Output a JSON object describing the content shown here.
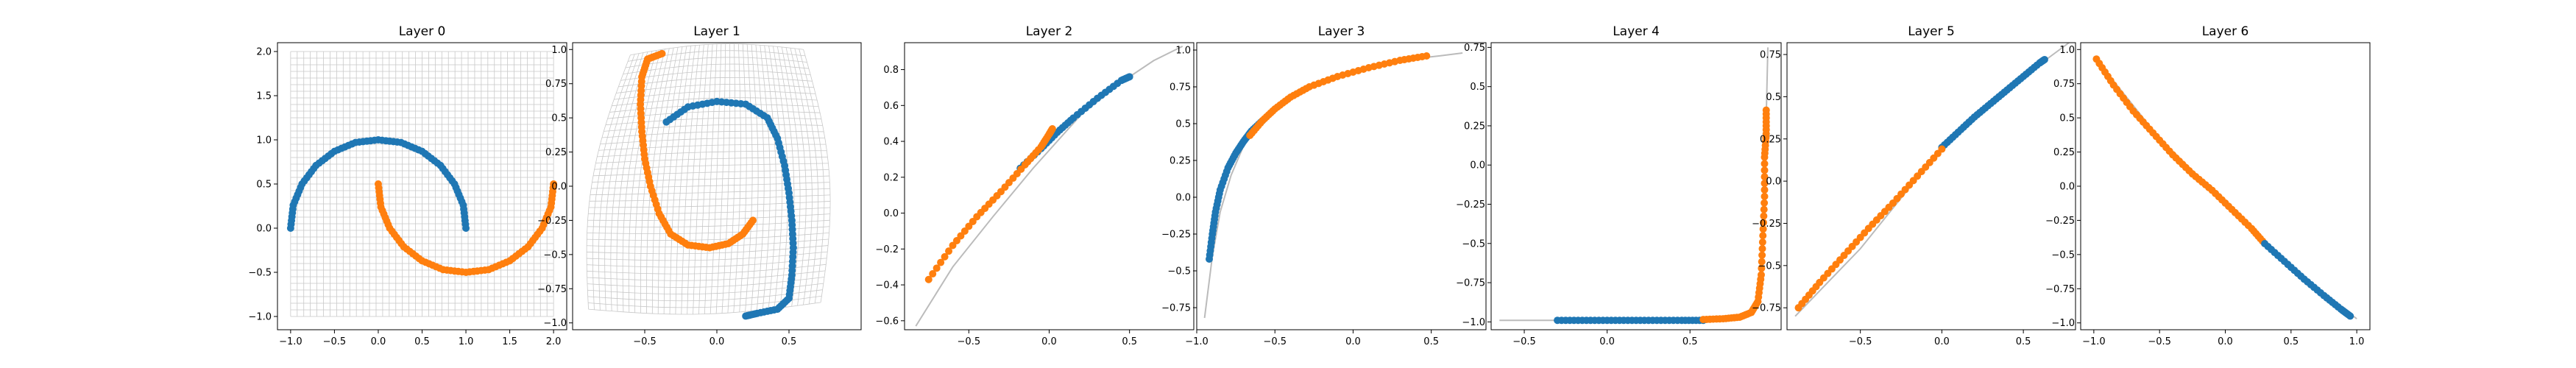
{
  "figure": {
    "colors": {
      "blue": "#1f77b4",
      "orange": "#ff7f0e",
      "grid_lines": "#bbbbbb",
      "axes": "#000000"
    }
  },
  "chart_data": [
    {
      "type": "scatter",
      "title": "Layer 0",
      "xlim": [
        -1.15,
        2.15
      ],
      "ylim": [
        -1.15,
        2.1
      ],
      "xticks": [
        -1.0,
        -0.5,
        0.0,
        0.5,
        1.0,
        1.5,
        2.0
      ],
      "yticks": [
        -1.0,
        -0.5,
        0.0,
        0.5,
        1.0,
        1.5,
        2.0
      ],
      "background_grid": {
        "x_range": [
          -1.0,
          2.0
        ],
        "y_range": [
          -1.0,
          2.0
        ],
        "divisions": 40
      },
      "series": [
        {
          "color": "blue",
          "points": [
            [
              -1.0,
              0.0
            ],
            [
              -0.97,
              0.26
            ],
            [
              -0.87,
              0.5
            ],
            [
              -0.71,
              0.71
            ],
            [
              -0.5,
              0.87
            ],
            [
              -0.26,
              0.97
            ],
            [
              0.0,
              1.0
            ],
            [
              0.26,
              0.97
            ],
            [
              0.5,
              0.87
            ],
            [
              0.71,
              0.71
            ],
            [
              0.87,
              0.5
            ],
            [
              0.97,
              0.26
            ],
            [
              1.0,
              0.0
            ]
          ]
        },
        {
          "color": "orange",
          "points": [
            [
              0.0,
              0.5
            ],
            [
              0.03,
              0.24
            ],
            [
              0.13,
              0.0
            ],
            [
              0.29,
              -0.21
            ],
            [
              0.5,
              -0.37
            ],
            [
              0.74,
              -0.47
            ],
            [
              1.0,
              -0.5
            ],
            [
              1.26,
              -0.47
            ],
            [
              1.5,
              -0.37
            ],
            [
              1.71,
              -0.21
            ],
            [
              1.87,
              0.0
            ],
            [
              1.97,
              0.24
            ],
            [
              2.0,
              0.5
            ]
          ]
        }
      ]
    },
    {
      "type": "scatter",
      "title": "Layer 1",
      "xlim": [
        -1.0,
        1.0
      ],
      "ylim": [
        -1.05,
        1.05
      ],
      "xticks": [
        -0.5,
        0.0,
        0.5
      ],
      "yticks": [
        -1.0,
        -0.75,
        -0.5,
        -0.25,
        0.0,
        0.25,
        0.5,
        0.75,
        1.0
      ],
      "background_grid": {
        "corners": [
          [
            -0.6,
            0.96
          ],
          [
            0.6,
            1.0
          ],
          [
            0.72,
            -0.85
          ],
          [
            -0.89,
            -0.9
          ]
        ],
        "divisions": 40
      },
      "series": [
        {
          "color": "blue",
          "points": [
            [
              -0.35,
              0.47
            ],
            [
              -0.2,
              0.58
            ],
            [
              0.0,
              0.62
            ],
            [
              0.2,
              0.6
            ],
            [
              0.35,
              0.5
            ],
            [
              0.42,
              0.35
            ],
            [
              0.47,
              0.15
            ],
            [
              0.5,
              -0.05
            ],
            [
              0.52,
              -0.25
            ],
            [
              0.53,
              -0.45
            ],
            [
              0.52,
              -0.65
            ],
            [
              0.5,
              -0.82
            ],
            [
              0.42,
              -0.9
            ],
            [
              0.28,
              -0.93
            ],
            [
              0.2,
              -0.95
            ]
          ]
        },
        {
          "color": "orange",
          "points": [
            [
              -0.38,
              0.97
            ],
            [
              -0.48,
              0.93
            ],
            [
              -0.52,
              0.8
            ],
            [
              -0.53,
              0.6
            ],
            [
              -0.52,
              0.4
            ],
            [
              -0.5,
              0.2
            ],
            [
              -0.46,
              0.0
            ],
            [
              -0.4,
              -0.2
            ],
            [
              -0.32,
              -0.35
            ],
            [
              -0.2,
              -0.43
            ],
            [
              -0.05,
              -0.45
            ],
            [
              0.08,
              -0.42
            ],
            [
              0.18,
              -0.35
            ],
            [
              0.25,
              -0.25
            ]
          ]
        }
      ]
    },
    {
      "type": "scatter",
      "title": "Layer 2",
      "xlim": [
        -0.9,
        0.9
      ],
      "ylim": [
        -0.65,
        0.95
      ],
      "xticks": [
        -0.5,
        0.0,
        0.5
      ],
      "yticks": [
        -0.6,
        -0.4,
        -0.2,
        0.0,
        0.2,
        0.4,
        0.6,
        0.8
      ],
      "background_curve": [
        [
          -0.83,
          -0.63
        ],
        [
          -0.6,
          -0.3
        ],
        [
          -0.35,
          -0.02
        ],
        [
          -0.1,
          0.25
        ],
        [
          0.0,
          0.35
        ],
        [
          0.2,
          0.55
        ],
        [
          0.45,
          0.73
        ],
        [
          0.65,
          0.85
        ],
        [
          0.83,
          0.93
        ]
      ],
      "series": [
        {
          "color": "blue",
          "points": [
            [
              -0.18,
              0.25
            ],
            [
              -0.05,
              0.36
            ],
            [
              0.05,
              0.45
            ],
            [
              0.15,
              0.53
            ],
            [
              0.3,
              0.64
            ],
            [
              0.45,
              0.74
            ],
            [
              0.5,
              0.76
            ]
          ]
        },
        {
          "color": "orange",
          "points": [
            [
              -0.75,
              -0.37
            ],
            [
              -0.6,
              -0.18
            ],
            [
              -0.45,
              -0.02
            ],
            [
              -0.3,
              0.12
            ],
            [
              -0.15,
              0.27
            ],
            [
              -0.05,
              0.37
            ],
            [
              0.0,
              0.44
            ],
            [
              0.02,
              0.47
            ]
          ]
        }
      ]
    },
    {
      "type": "scatter",
      "title": "Layer 3",
      "xlim": [
        -1.0,
        0.85
      ],
      "ylim": [
        -0.9,
        1.05
      ],
      "xticks": [
        -1.0,
        -0.5,
        0.0,
        0.5
      ],
      "yticks": [
        -0.75,
        -0.5,
        -0.25,
        0.0,
        0.25,
        0.5,
        0.75,
        1.0
      ],
      "background_curve": [
        [
          -0.95,
          -0.82
        ],
        [
          -0.9,
          -0.4
        ],
        [
          -0.85,
          -0.1
        ],
        [
          -0.78,
          0.15
        ],
        [
          -0.7,
          0.35
        ],
        [
          -0.6,
          0.5
        ],
        [
          -0.45,
          0.65
        ],
        [
          -0.25,
          0.77
        ],
        [
          0.0,
          0.86
        ],
        [
          0.3,
          0.93
        ],
        [
          0.55,
          0.96
        ],
        [
          0.7,
          0.98
        ]
      ],
      "series": [
        {
          "color": "blue",
          "points": [
            [
              -0.92,
              -0.42
            ],
            [
              -0.9,
              -0.25
            ],
            [
              -0.88,
              -0.1
            ],
            [
              -0.85,
              0.05
            ],
            [
              -0.8,
              0.2
            ],
            [
              -0.75,
              0.3
            ],
            [
              -0.7,
              0.38
            ],
            [
              -0.65,
              0.45
            ],
            [
              -0.58,
              0.52
            ]
          ]
        },
        {
          "color": "orange",
          "points": [
            [
              -0.66,
              0.42
            ],
            [
              -0.58,
              0.52
            ],
            [
              -0.5,
              0.6
            ],
            [
              -0.4,
              0.68
            ],
            [
              -0.28,
              0.75
            ],
            [
              -0.1,
              0.82
            ],
            [
              0.1,
              0.88
            ],
            [
              0.3,
              0.93
            ],
            [
              0.47,
              0.96
            ]
          ]
        }
      ]
    },
    {
      "type": "scatter",
      "title": "Layer 4",
      "xlim": [
        -0.7,
        1.05
      ],
      "ylim": [
        -1.05,
        0.78
      ],
      "xticks": [
        -0.5,
        0.0,
        0.5
      ],
      "yticks": [
        -1.0,
        -0.75,
        -0.5,
        -0.25,
        0.0,
        0.25,
        0.5,
        0.75
      ],
      "background_curve": [
        [
          -0.65,
          -0.99
        ],
        [
          -0.3,
          -0.99
        ],
        [
          0.2,
          -0.99
        ],
        [
          0.6,
          -0.98
        ],
        [
          0.8,
          -0.96
        ],
        [
          0.88,
          -0.92
        ],
        [
          0.92,
          -0.8
        ],
        [
          0.94,
          -0.5
        ],
        [
          0.95,
          -0.1
        ],
        [
          0.96,
          0.3
        ],
        [
          0.97,
          0.75
        ]
      ],
      "series": [
        {
          "color": "blue",
          "points": [
            [
              -0.3,
              -0.99
            ],
            [
              -0.15,
              -0.99
            ],
            [
              0.0,
              -0.99
            ],
            [
              0.15,
              -0.99
            ],
            [
              0.3,
              -0.99
            ],
            [
              0.45,
              -0.99
            ],
            [
              0.58,
              -0.99
            ]
          ]
        },
        {
          "color": "orange",
          "points": [
            [
              0.58,
              -0.985
            ],
            [
              0.7,
              -0.98
            ],
            [
              0.8,
              -0.97
            ],
            [
              0.87,
              -0.94
            ],
            [
              0.91,
              -0.87
            ],
            [
              0.93,
              -0.7
            ],
            [
              0.94,
              -0.45
            ],
            [
              0.95,
              -0.2
            ],
            [
              0.95,
              0.05
            ],
            [
              0.96,
              0.2
            ],
            [
              0.96,
              0.35
            ]
          ]
        }
      ]
    },
    {
      "type": "scatter",
      "title": "Layer 5",
      "xlim": [
        -0.95,
        0.82
      ],
      "ylim": [
        -0.88,
        0.82
      ],
      "xticks": [
        -0.5,
        0.0,
        0.5
      ],
      "yticks": [
        -0.75,
        -0.5,
        -0.25,
        0.0,
        0.25,
        0.5,
        0.75
      ],
      "background_curve": [
        [
          -0.9,
          -0.8
        ],
        [
          -0.5,
          -0.4
        ],
        [
          0.0,
          0.2
        ],
        [
          0.5,
          0.62
        ],
        [
          0.78,
          0.82
        ]
      ],
      "series": [
        {
          "color": "blue",
          "points": [
            [
              0.0,
              0.2
            ],
            [
              0.1,
              0.29
            ],
            [
              0.2,
              0.38
            ],
            [
              0.3,
              0.46
            ],
            [
              0.4,
              0.54
            ],
            [
              0.5,
              0.62
            ],
            [
              0.6,
              0.7
            ],
            [
              0.63,
              0.72
            ]
          ]
        },
        {
          "color": "orange",
          "points": [
            [
              -0.88,
              -0.75
            ],
            [
              -0.75,
              -0.6
            ],
            [
              -0.6,
              -0.44
            ],
            [
              -0.45,
              -0.28
            ],
            [
              -0.3,
              -0.13
            ],
            [
              -0.15,
              0.03
            ],
            [
              0.0,
              0.19
            ]
          ]
        }
      ]
    },
    {
      "type": "scatter",
      "title": "Layer 6",
      "xlim": [
        -1.1,
        1.1
      ],
      "ylim": [
        -1.05,
        1.05
      ],
      "xticks": [
        -1.0,
        -0.5,
        0.0,
        0.5,
        1.0
      ],
      "yticks": [
        -1.0,
        -0.75,
        -0.5,
        -0.25,
        0.0,
        0.25,
        0.5,
        0.75,
        1.0
      ],
      "background_curve": [
        [
          -1.0,
          0.95
        ],
        [
          -0.5,
          0.35
        ],
        [
          0.0,
          -0.12
        ],
        [
          0.5,
          -0.6
        ],
        [
          1.0,
          -0.97
        ]
      ],
      "series": [
        {
          "color": "orange",
          "points": [
            [
              -0.98,
              0.93
            ],
            [
              -0.85,
              0.74
            ],
            [
              -0.7,
              0.55
            ],
            [
              -0.55,
              0.39
            ],
            [
              -0.4,
              0.23
            ],
            [
              -0.25,
              0.09
            ],
            [
              -0.1,
              -0.03
            ],
            [
              0.05,
              -0.17
            ],
            [
              0.2,
              -0.31
            ],
            [
              0.3,
              -0.42
            ]
          ]
        },
        {
          "color": "blue",
          "points": [
            [
              0.3,
              -0.42
            ],
            [
              0.45,
              -0.55
            ],
            [
              0.6,
              -0.68
            ],
            [
              0.75,
              -0.8
            ],
            [
              0.88,
              -0.9
            ],
            [
              0.95,
              -0.95
            ]
          ]
        }
      ]
    }
  ]
}
